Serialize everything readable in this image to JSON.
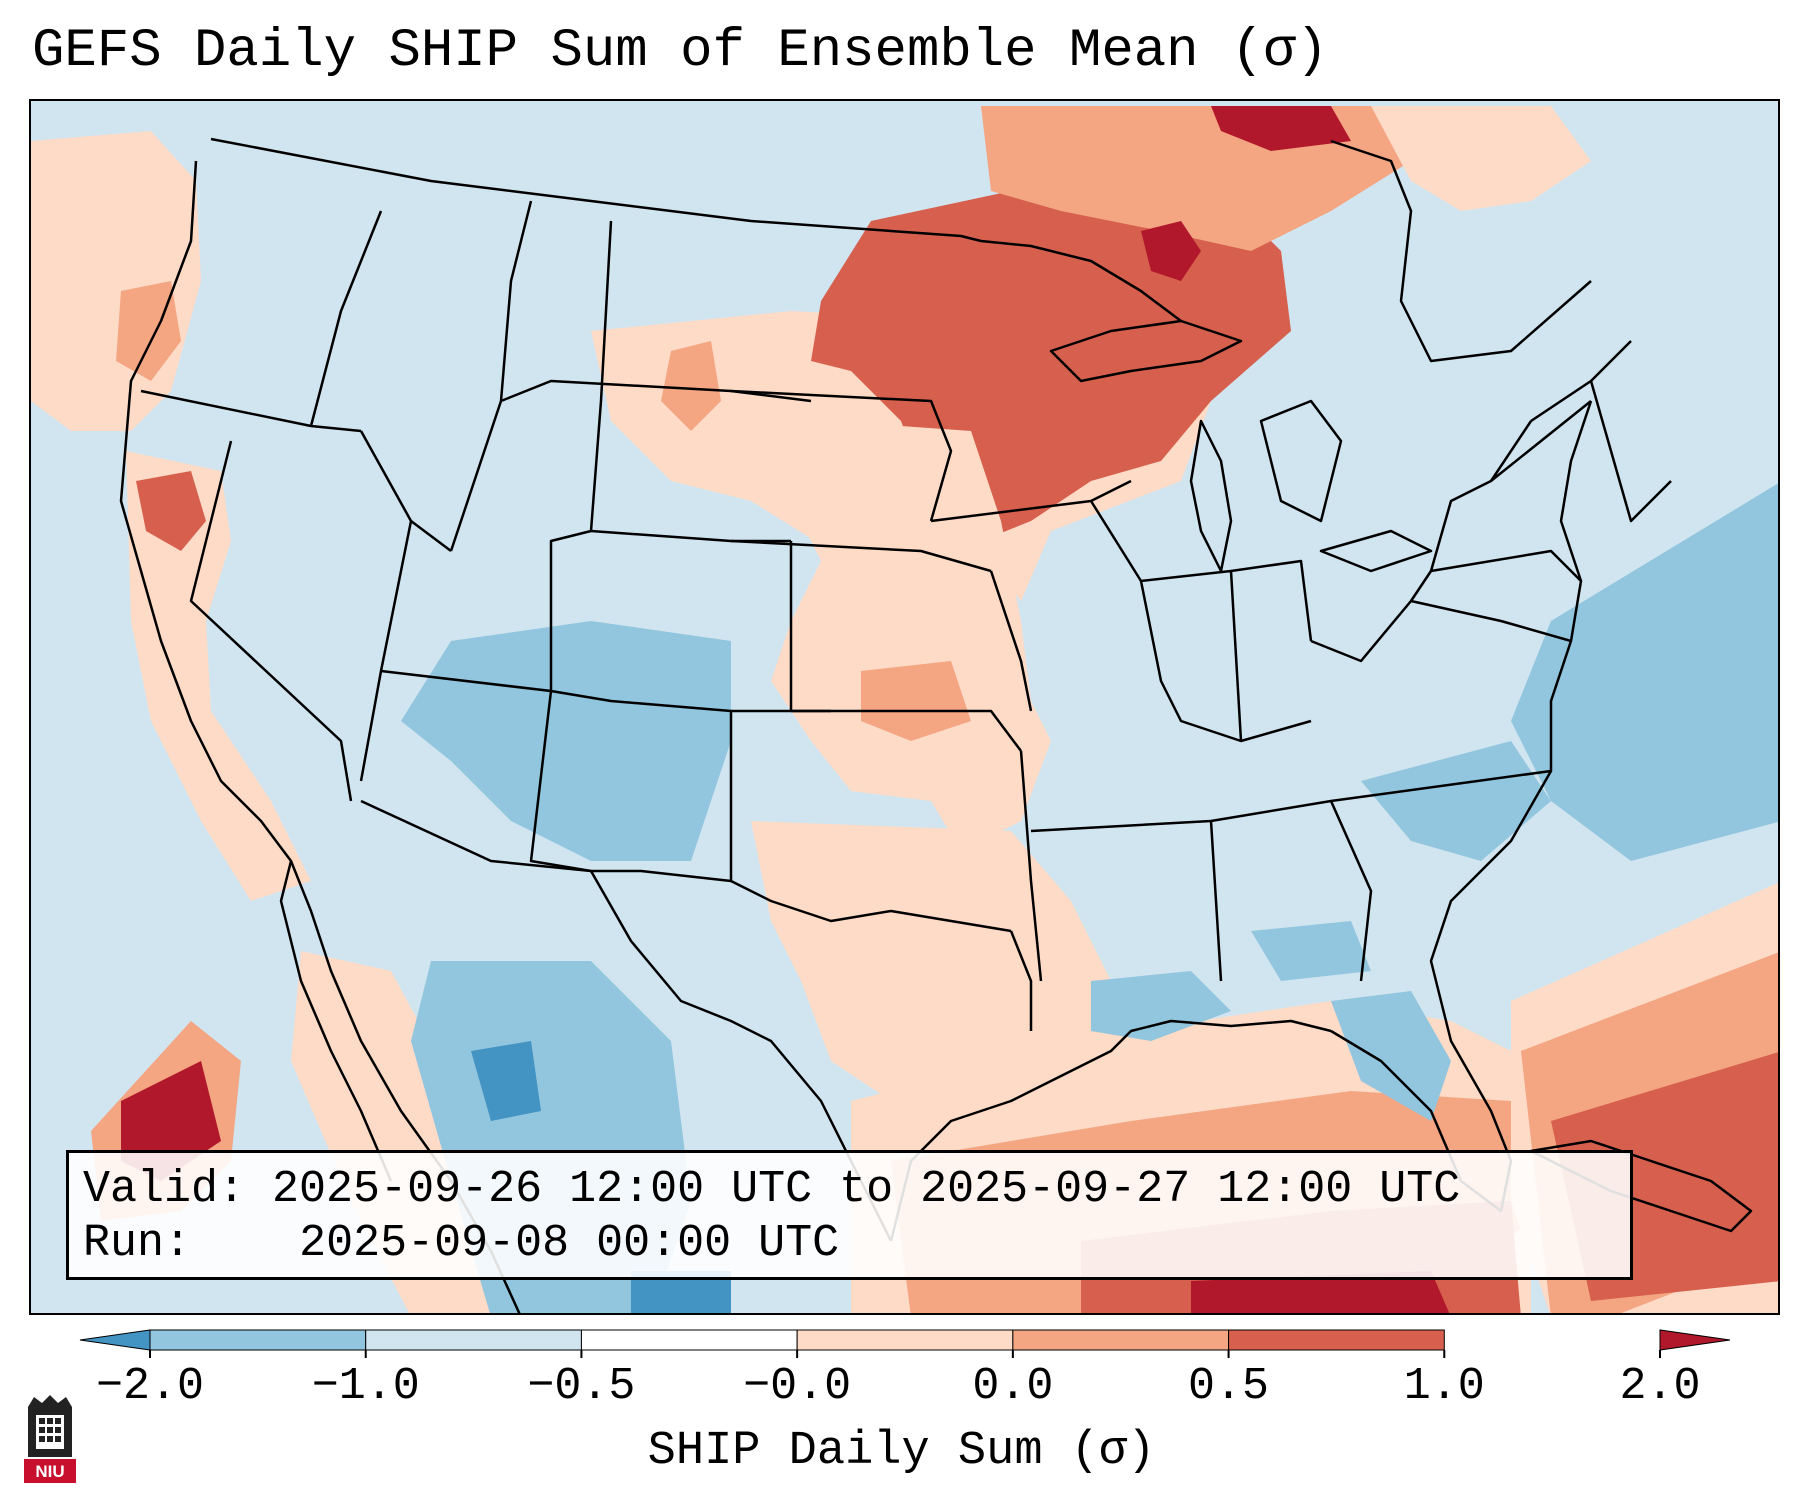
{
  "title": "GEFS Daily SHIP Sum of Ensemble Mean (σ)",
  "info": {
    "valid_label": "Valid:",
    "valid_value": "2025-09-26 12:00 UTC to 2025-09-27 12:00 UTC",
    "run_label": "Run:",
    "run_value": "2025-09-08 00:00 UTC"
  },
  "colorbar": {
    "label": "SHIP Daily Sum (σ)",
    "ticks": [
      "−2.0",
      "−1.0",
      "−0.5",
      "−0.0",
      "0.0",
      "0.5",
      "1.0",
      "2.0"
    ],
    "bins": [
      {
        "range": "-2.0 to -1.0",
        "color": "#4393c3"
      },
      {
        "range": "-1.0 to -0.5",
        "color": "#92c5de"
      },
      {
        "range": "-0.5 to 0.0",
        "color": "#d1e5f0"
      },
      {
        "range": "0.0 to 0.0",
        "color": "#ffffff"
      },
      {
        "range": "0.0 to 0.5",
        "color": "#fddbc7"
      },
      {
        "range": "0.5 to 1.0",
        "color": "#f4a582"
      },
      {
        "range": "1.0 to 2.0",
        "color": "#d6604d"
      },
      {
        "range": "above 2.0",
        "color": "#b2182b"
      }
    ],
    "extend": "both"
  },
  "map": {
    "projection": "Lambert conformal (CONUS)",
    "background_color": "#d1e5f0",
    "regions": [
      {
        "name": "upper-midwest-great-lakes",
        "category": "1.0 to 2.0",
        "color": "#d6604d"
      },
      {
        "name": "lake-superior-core",
        "category": "above 2.0",
        "color": "#b2182b"
      },
      {
        "name": "ontario-north",
        "category": "above 2.0",
        "color": "#b2182b"
      },
      {
        "name": "central-plains",
        "category": "0.0 to 0.5",
        "color": "#fddbc7"
      },
      {
        "name": "south-texas-gulf",
        "category": "0.0 to 0.5",
        "color": "#fddbc7"
      },
      {
        "name": "gulf-of-mexico",
        "category": "0.5 to 1.0",
        "color": "#f4a582"
      },
      {
        "name": "atlantic-caribbean",
        "category": "1.0 to 2.0",
        "color": "#d6604d"
      },
      {
        "name": "baja-pacific",
        "category": "above 2.0",
        "color": "#b2182b"
      },
      {
        "name": "southwest-four-corners",
        "category": "-1.0 to -0.5",
        "color": "#92c5de"
      },
      {
        "name": "northern-mexico",
        "category": "-2.0 to -1.0",
        "color": "#4393c3"
      },
      {
        "name": "western-atlantic",
        "category": "-1.0 to -0.5",
        "color": "#92c5de"
      }
    ]
  },
  "logo": {
    "text": "NIU",
    "color": "#c8102e"
  }
}
